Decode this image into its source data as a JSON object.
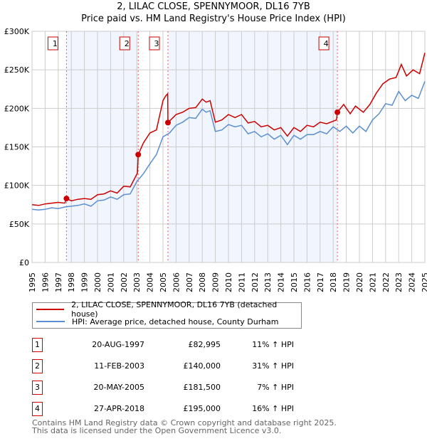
{
  "title": "2, LILAC CLOSE, SPENNYMOOR, DL16 7YB",
  "subtitle": "Price paid vs. HM Land Registry's House Price Index (HPI)",
  "chart_data": {
    "type": "line",
    "ylim": [
      0,
      300000
    ],
    "xlim": [
      1995,
      2025
    ],
    "yticks": [
      {
        "v": 0,
        "label": "£0"
      },
      {
        "v": 50000,
        "label": "£50K"
      },
      {
        "v": 100000,
        "label": "£100K"
      },
      {
        "v": 150000,
        "label": "£150K"
      },
      {
        "v": 200000,
        "label": "£200K"
      },
      {
        "v": 250000,
        "label": "£250K"
      },
      {
        "v": 300000,
        "label": "£300K"
      }
    ],
    "xticks": [
      "1995",
      "1996",
      "1997",
      "1998",
      "1999",
      "2000",
      "2001",
      "2002",
      "2003",
      "2004",
      "2005",
      "2006",
      "2007",
      "2008",
      "2009",
      "2010",
      "2011",
      "2012",
      "2013",
      "2014",
      "2015",
      "2016",
      "2017",
      "2018",
      "2019",
      "2020",
      "2021",
      "2022",
      "2023",
      "2024",
      "2025"
    ],
    "shaded_ranges": [
      [
        1997.63,
        2003.11
      ],
      [
        2005.38,
        2018.32
      ]
    ],
    "series": [
      {
        "name": "2, LILAC CLOSE, SPENNYMOOR, DL16 7YB (detached house)",
        "color": "#cc0000",
        "x": [
          1995,
          1995.5,
          1996,
          1996.5,
          1997,
          1997.5,
          1997.63,
          1998,
          1998.5,
          1999,
          1999.5,
          2000,
          2000.5,
          2001,
          2001.5,
          2002,
          2002.5,
          2003.05,
          2003.11,
          2003.5,
          2004,
          2004.5,
          2005,
          2005.2,
          2005.36,
          2005.38,
          2006,
          2006.5,
          2007,
          2007.5,
          2008,
          2008.3,
          2008.6,
          2009,
          2009.5,
          2010,
          2010.5,
          2011,
          2011.5,
          2012,
          2012.5,
          2013,
          2013.5,
          2014,
          2014.5,
          2015,
          2015.5,
          2016,
          2016.5,
          2017,
          2017.5,
          2018.25,
          2018.32,
          2018.8,
          2019.3,
          2019.7,
          2020.3,
          2020.8,
          2021.3,
          2021.8,
          2022.3,
          2022.8,
          2023.2,
          2023.6,
          2024.1,
          2024.6,
          2025
        ],
        "y": [
          75000,
          74000,
          76000,
          77000,
          78000,
          77000,
          82995,
          80000,
          82000,
          83000,
          82000,
          88000,
          89000,
          93000,
          90000,
          99000,
          98000,
          116000,
          140000,
          155000,
          168000,
          172000,
          210000,
          216000,
          219000,
          181500,
          192000,
          195000,
          200000,
          201000,
          212000,
          208000,
          210000,
          182000,
          185000,
          192000,
          188000,
          192000,
          181000,
          183000,
          176000,
          178000,
          172000,
          175000,
          164000,
          175000,
          170000,
          178000,
          176000,
          182000,
          180000,
          185000,
          195000,
          205000,
          193000,
          203000,
          195000,
          205000,
          220000,
          232000,
          238000,
          240000,
          257000,
          242000,
          250000,
          245000,
          272000
        ]
      },
      {
        "name": "HPI: Average price, detached house, County Durham",
        "color": "#5b8fd0",
        "x": [
          1995,
          1995.5,
          1996,
          1996.5,
          1997,
          1997.5,
          1998,
          1998.5,
          1999,
          1999.5,
          2000,
          2000.5,
          2001,
          2001.5,
          2002,
          2002.5,
          2003,
          2003.5,
          2004,
          2004.5,
          2005,
          2005.5,
          2006,
          2006.5,
          2007,
          2007.5,
          2008,
          2008.3,
          2008.6,
          2009,
          2009.5,
          2010,
          2010.5,
          2011,
          2011.5,
          2012,
          2012.5,
          2013,
          2013.5,
          2014,
          2014.5,
          2015,
          2015.5,
          2016,
          2016.5,
          2017,
          2017.5,
          2018,
          2018.5,
          2019,
          2019.5,
          2020,
          2020.5,
          2021,
          2021.5,
          2022,
          2022.5,
          2023,
          2023.5,
          2024,
          2024.5,
          2025
        ],
        "y": [
          69000,
          68000,
          69000,
          71000,
          70000,
          72000,
          73000,
          74000,
          76000,
          73000,
          80000,
          81000,
          85000,
          82000,
          88000,
          89000,
          105000,
          115000,
          128000,
          140000,
          163000,
          168000,
          178000,
          182000,
          188000,
          187000,
          199000,
          195000,
          197000,
          170000,
          172000,
          179000,
          176000,
          178000,
          167000,
          170000,
          163000,
          167000,
          160000,
          165000,
          153000,
          165000,
          160000,
          166000,
          166000,
          170000,
          167000,
          176000,
          170000,
          177000,
          168000,
          177000,
          170000,
          185000,
          193000,
          206000,
          204000,
          222000,
          210000,
          217000,
          213000,
          235000
        ]
      }
    ],
    "sales": [
      {
        "n": "1",
        "x": 1997.63,
        "y": 82995
      },
      {
        "n": "2",
        "x": 2003.11,
        "y": 140000
      },
      {
        "n": "3",
        "x": 2005.38,
        "y": 181500
      },
      {
        "n": "4",
        "x": 2018.32,
        "y": 195000
      }
    ]
  },
  "legend": {
    "property": "2, LILAC CLOSE, SPENNYMOOR, DL16 7YB (detached house)",
    "hpi": "HPI: Average price, detached house, County Durham"
  },
  "table": [
    {
      "n": "1",
      "date": "20-AUG-1997",
      "price": "£82,995",
      "hpi": "11% ↑ HPI"
    },
    {
      "n": "2",
      "date": "11-FEB-2003",
      "price": "£140,000",
      "hpi": "31% ↑ HPI"
    },
    {
      "n": "3",
      "date": "20-MAY-2005",
      "price": "£181,500",
      "hpi": "7% ↑ HPI"
    },
    {
      "n": "4",
      "date": "27-APR-2018",
      "price": "£195,000",
      "hpi": "16% ↑ HPI"
    }
  ],
  "footer": {
    "line1": "Contains HM Land Registry data © Crown copyright and database right 2025.",
    "line2": "This data is licensed under the Open Government Licence v3.0."
  }
}
